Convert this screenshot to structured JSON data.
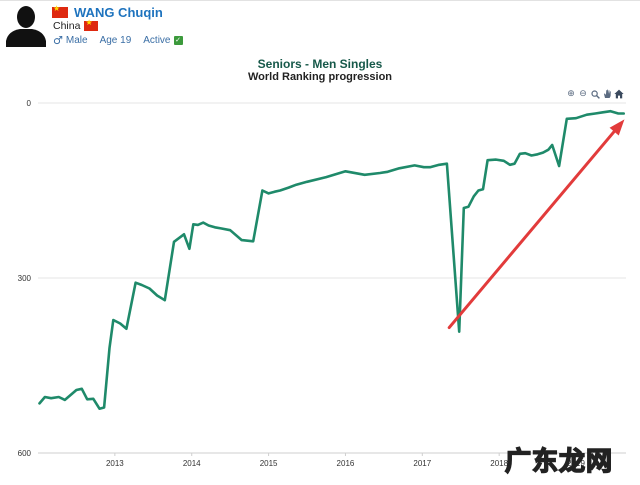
{
  "player": {
    "name": "WANG Chuqin",
    "country": "China",
    "gender": "Male",
    "age": "Age 19",
    "status": "Active"
  },
  "icons": {
    "avatar": "person-silhouette-icon",
    "flag": "china-flag-icon",
    "gender": "male-symbol-icon",
    "status": "check-icon",
    "toolbar": [
      "zoom-in-icon",
      "zoom-out-icon",
      "magnifier-icon",
      "pan-hand-icon",
      "home-icon"
    ]
  },
  "colors": {
    "line": "#1f8a6a",
    "arrow": "#e23b3b",
    "name": "#1e73be"
  },
  "watermark": "广东龙网",
  "chart_data": {
    "type": "line",
    "title": "Seniors - Men Singles",
    "subtitle": "World Ranking progression",
    "xlabel": "",
    "ylabel": "",
    "y_reversed": true,
    "ylim": [
      0,
      600
    ],
    "y_ticks": [
      0,
      300,
      600
    ],
    "xlim": [
      2012.0,
      2019.65
    ],
    "x_ticks": [
      "2013",
      "2014",
      "2015",
      "2016",
      "2017",
      "2018",
      "2019"
    ],
    "grid": "horizontal",
    "series": [
      {
        "x": [
          2012.02,
          2012.09,
          2012.17,
          2012.27,
          2012.35,
          2012.42,
          2012.5,
          2012.57,
          2012.64,
          2012.72,
          2012.8,
          2012.86,
          2012.93,
          2012.98,
          2013.07,
          2013.15,
          2013.27,
          2013.35,
          2013.45,
          2013.55,
          2013.65,
          2013.77,
          2013.9,
          2013.97,
          2014.02,
          2014.08,
          2014.15,
          2014.22,
          2014.3,
          2014.38,
          2014.5,
          2014.65,
          2014.8,
          2014.92,
          2015.0,
          2015.08,
          2015.15,
          2015.26,
          2015.36,
          2015.5,
          2015.75,
          2016.0,
          2016.25,
          2016.45,
          2016.55,
          2016.7,
          2016.9,
          2017.02,
          2017.1,
          2017.22,
          2017.32,
          2017.48,
          2017.54,
          2017.6,
          2017.67,
          2017.73,
          2017.79,
          2017.85,
          2017.96,
          2018.06,
          2018.14,
          2018.2,
          2018.27,
          2018.34,
          2018.42,
          2018.5,
          2018.57,
          2018.64,
          2018.69,
          2018.78,
          2018.88,
          2019.0,
          2019.14,
          2019.25,
          2019.35,
          2019.45,
          2019.55,
          2019.62
        ],
        "values": [
          515,
          504,
          506,
          504,
          509,
          501,
          492,
          490,
          508,
          507,
          524,
          522,
          420,
          372,
          378,
          387,
          308,
          312,
          318,
          330,
          338,
          238,
          225,
          250,
          208,
          209,
          205,
          210,
          213,
          215,
          218,
          235,
          237,
          150,
          155,
          152,
          150,
          145,
          140,
          135,
          127,
          117,
          123,
          120,
          118,
          112,
          107,
          110,
          110,
          106,
          104,
          392,
          180,
          178,
          160,
          150,
          148,
          98,
          97,
          99,
          106,
          104,
          87,
          86,
          90,
          88,
          85,
          80,
          72,
          108,
          27,
          26,
          20,
          18,
          16,
          14,
          18,
          18
        ]
      }
    ],
    "annotation": "arrow"
  }
}
